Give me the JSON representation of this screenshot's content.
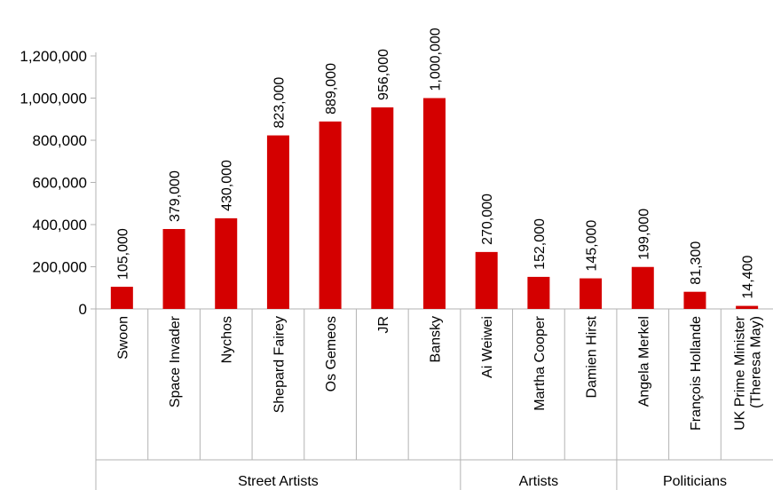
{
  "chart_data": {
    "type": "bar",
    "title": "",
    "xlabel": "",
    "ylabel": "",
    "ylim": [
      0,
      1200000
    ],
    "yticks": [
      0,
      200000,
      400000,
      600000,
      800000,
      1000000,
      1200000
    ],
    "ytick_labels": [
      "0",
      "200,000",
      "400,000",
      "600,000",
      "800,000",
      "1,000,000",
      "1,200,000"
    ],
    "grid": false,
    "legend": "none",
    "bar_color": "#d40000",
    "categories": [
      "Swoon",
      "Space Invader",
      "Nychos",
      "Shepard Fairey",
      "Os Gemeos",
      "JR",
      "Bansky",
      "Ai Weiwei",
      "Martha Cooper",
      "Damien Hirst",
      "Angela Merkel",
      "François Hollande",
      "UK Prime Minister (Theresa May)"
    ],
    "category_lines": [
      [
        "Swoon"
      ],
      [
        "Space Invader"
      ],
      [
        "Nychos"
      ],
      [
        "Shepard Fairey"
      ],
      [
        "Os Gemeos"
      ],
      [
        "JR"
      ],
      [
        "Bansky"
      ],
      [
        "Ai Weiwei"
      ],
      [
        "Martha Cooper"
      ],
      [
        "Damien Hirst"
      ],
      [
        "Angela Merkel"
      ],
      [
        "François Hollande"
      ],
      [
        "UK Prime Minister",
        "(Theresa May)"
      ]
    ],
    "values": [
      105000,
      379000,
      430000,
      823000,
      889000,
      956000,
      1000000,
      270000,
      152000,
      145000,
      199000,
      81300,
      14400
    ],
    "data_labels": [
      "105,000",
      "379,000",
      "430,000",
      "823,000",
      "889,000",
      "956,000",
      "1,000,000",
      "270,000",
      "152,000",
      "145,000",
      "199,000",
      "81,300",
      "14,400"
    ],
    "groups": [
      {
        "name": "Street Artists",
        "count": 7
      },
      {
        "name": "Artists",
        "count": 3
      },
      {
        "name": "Politicians",
        "count": 3
      }
    ]
  }
}
